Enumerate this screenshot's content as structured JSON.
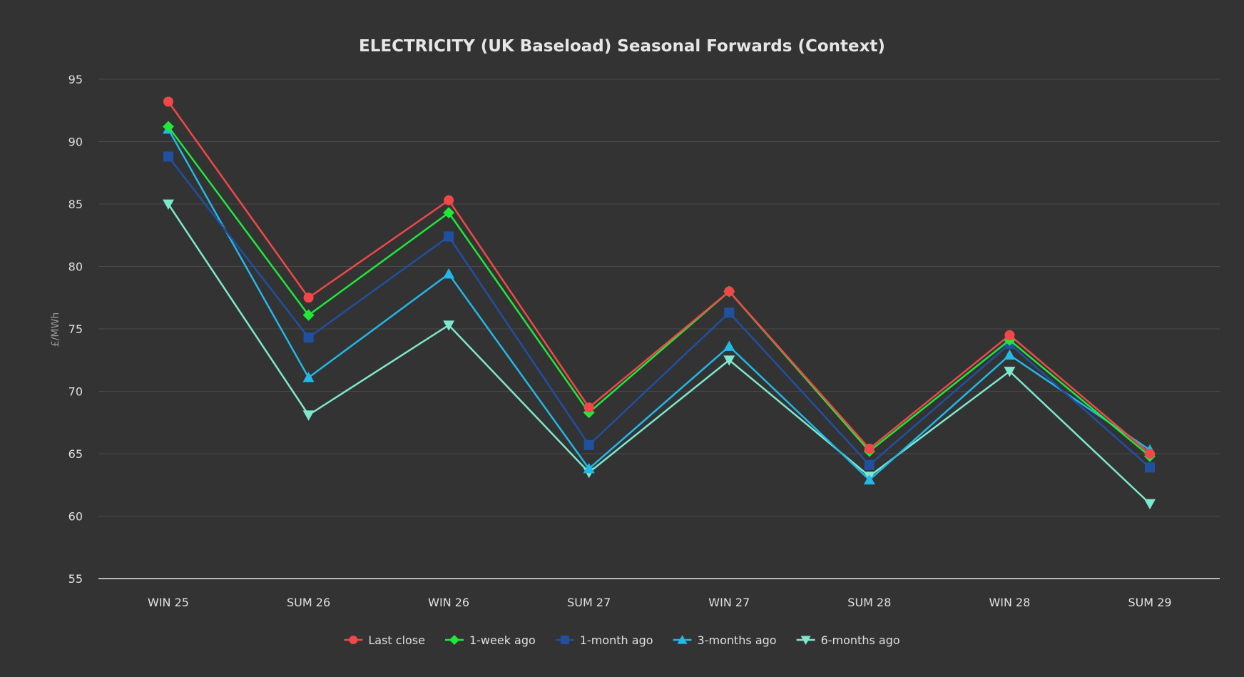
{
  "chart_data": {
    "type": "line",
    "title": "ELECTRICITY (UK Baseload) Seasonal Forwards (Context)",
    "xlabel": "",
    "ylabel": "£/MWh",
    "categories": [
      "WIN 25",
      "SUM 26",
      "WIN 26",
      "SUM 27",
      "WIN 27",
      "SUM 28",
      "WIN 28",
      "SUM 29"
    ],
    "ylim": [
      55,
      95
    ],
    "yticks": [
      55,
      60,
      65,
      70,
      75,
      80,
      85,
      90,
      95
    ],
    "grid": true,
    "legend_position": "bottom",
    "series": [
      {
        "name": "Last close",
        "color": "#f04848",
        "marker": "circle",
        "values": [
          93.2,
          77.5,
          85.3,
          68.7,
          78.0,
          65.4,
          74.5,
          65.0
        ]
      },
      {
        "name": "1-week ago",
        "color": "#1ee83a",
        "marker": "diamond",
        "values": [
          91.2,
          76.1,
          84.3,
          68.3,
          78.0,
          65.2,
          74.1,
          64.8
        ]
      },
      {
        "name": "1-month ago",
        "color": "#2050a0",
        "marker": "square",
        "values": [
          88.8,
          74.3,
          82.4,
          65.7,
          76.3,
          64.1,
          73.8,
          63.9
        ]
      },
      {
        "name": "3-months ago",
        "color": "#22b8e8",
        "marker": "triangle-up",
        "values": [
          91.0,
          71.1,
          79.4,
          63.8,
          73.6,
          62.9,
          72.9,
          65.3
        ]
      },
      {
        "name": "6-months ago",
        "color": "#7ee8cc",
        "marker": "triangle-down",
        "values": [
          85.0,
          68.1,
          75.3,
          63.5,
          72.5,
          63.2,
          71.6,
          61.0
        ]
      }
    ]
  }
}
